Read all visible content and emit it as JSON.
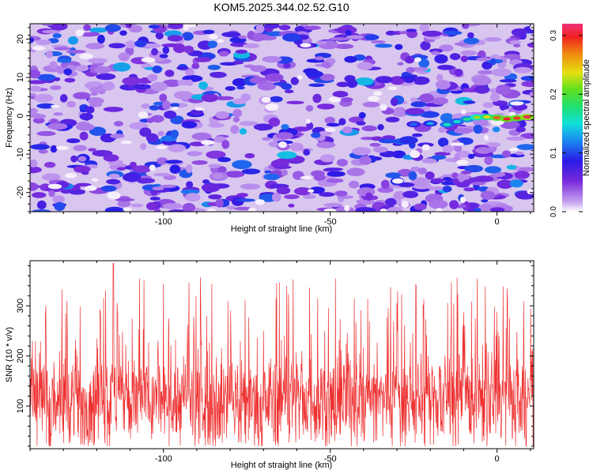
{
  "title": "KOM5.2025.344.02.52.G10",
  "chart_data": [
    {
      "type": "heatmap",
      "xlabel": "Height of straight line (km)",
      "ylabel": "Frequency (Hz)",
      "xlim": [
        -140,
        11
      ],
      "ylim": [
        -25,
        24
      ],
      "xticks": [
        -100,
        -50,
        0
      ],
      "yticks": [
        20,
        10,
        0,
        -10,
        -20
      ],
      "colorbar": {
        "label": "Normalized spectral amplitude",
        "range": [
          0,
          0.32
        ],
        "ticks": [
          "0.0",
          "0.1",
          "0.2",
          "0.3"
        ],
        "tick_values": [
          0,
          0.1,
          0.2,
          0.3
        ]
      },
      "features": [
        {
          "description": "noise floor of low amplitude blobs (~0.0-0.1) across the plane"
        },
        {
          "description": "coherent signal track near 0 Hz",
          "x_range": [
            -25,
            10
          ],
          "frequency_hz": [
            -3,
            0
          ],
          "peak_amplitude": 0.3
        }
      ]
    },
    {
      "type": "line",
      "xlabel": "Height of straight line (km)",
      "ylabel": "SNR (10 * v/v)",
      "xlim": [
        -140,
        11
      ],
      "ylim": [
        15,
        390
      ],
      "xticks": [
        -100,
        -50,
        0
      ],
      "yticks": [
        100,
        200,
        300
      ],
      "color": "#ee3030",
      "series_stats": {
        "typical_range": [
          30,
          250
        ],
        "mean_approx": 115,
        "max_approx": 385,
        "max_at_x": -115
      }
    }
  ]
}
